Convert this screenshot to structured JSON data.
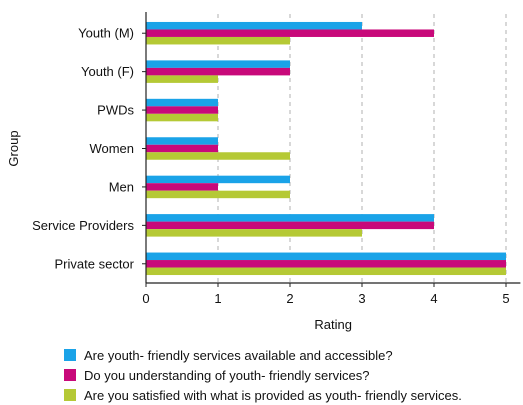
{
  "chart_data": {
    "type": "bar",
    "orientation": "horizontal",
    "categories": [
      "Youth (M)",
      "Youth (F)",
      "PWDs",
      "Women",
      "Men",
      "Service Providers",
      "Private sector"
    ],
    "series": [
      {
        "name": "Are youth- friendly services available and accessible?",
        "color": "#1aa3e8",
        "values": [
          3,
          2,
          1,
          1,
          2,
          4,
          5
        ]
      },
      {
        "name": "Do you understanding of youth- friendly services?",
        "color": "#c8097a",
        "values": [
          4,
          2,
          1,
          1,
          1,
          4,
          5
        ]
      },
      {
        "name": "Are you satisfied with what is provided as youth- friendly services.",
        "color": "#b5c935",
        "values": [
          2,
          1,
          1,
          2,
          2,
          3,
          5
        ]
      }
    ],
    "xlabel": "Rating",
    "ylabel": "Group",
    "xlim": [
      0,
      5.2
    ],
    "xticks": [
      0,
      1,
      2,
      3,
      4,
      5
    ],
    "grid": "vertical dashed",
    "legend_position": "bottom"
  }
}
